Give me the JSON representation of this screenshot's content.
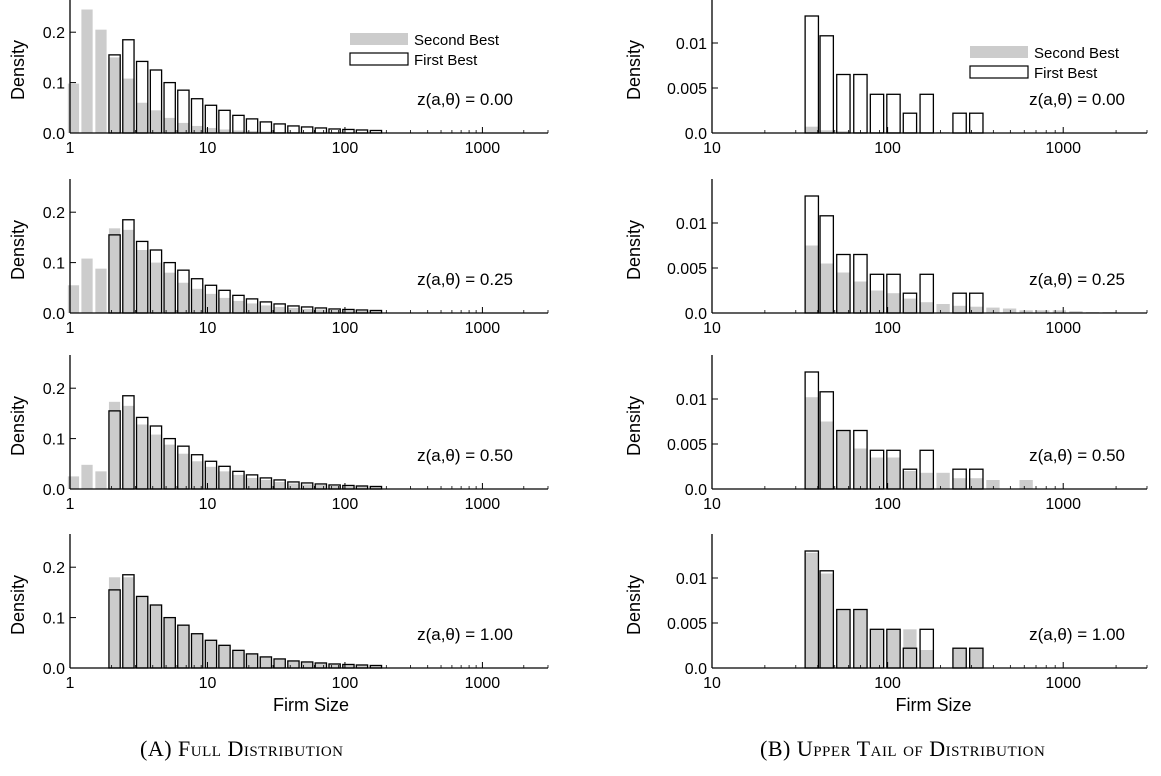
{
  "captions": {
    "left_prefix": "(A) ",
    "left_text": "Full Distribution",
    "right_prefix": "(B) ",
    "right_text": "Upper Tail of Distribution"
  },
  "legend": {
    "second_best": "Second Best",
    "first_best": "First Best"
  },
  "colors": {
    "second_best_fill": "#cccccc",
    "first_best_edge": "#000000",
    "first_best_fill": "#ffffff"
  },
  "chart_data": [
    {
      "type": "bar",
      "panel": "A",
      "row": 1,
      "ylabel": "Density",
      "xlabel": "",
      "xscale": "log",
      "xlim": [
        1,
        3000
      ],
      "ylim": [
        0,
        0.25
      ],
      "xticks": [
        "1",
        "10",
        "100",
        "1000"
      ],
      "yticks": [
        "0.0",
        "0.1",
        "0.2"
      ],
      "annotation": "z(a,θ) = 0.00",
      "legend": "top-right",
      "series": [
        {
          "name": "Second Best",
          "x": [
            1.06,
            1.33,
            1.68,
            2.11,
            2.66,
            3.35,
            4.22,
            5.31,
            6.68,
            8.41,
            10.6,
            13.3,
            16.8,
            21.1,
            26.6,
            33.5,
            42.2,
            53.1,
            66.8,
            84.1,
            106,
            133,
            168
          ],
          "values": [
            0.098,
            0.245,
            0.205,
            0.15,
            0.108,
            0.06,
            0.045,
            0.03,
            0.02,
            0.014,
            0.01,
            0.007,
            0.005,
            0.004,
            0.003,
            0.002,
            0.002,
            0.001,
            0.001,
            0.001,
            0.001,
            0.001,
            0.001
          ]
        },
        {
          "name": "First Best",
          "x": [
            2.11,
            2.66,
            3.35,
            4.22,
            5.31,
            6.68,
            8.41,
            10.6,
            13.3,
            16.8,
            21.1,
            26.6,
            33.5,
            42.2,
            53.1,
            66.8,
            84.1,
            106,
            133,
            168
          ],
          "values": [
            0.155,
            0.185,
            0.142,
            0.125,
            0.1,
            0.085,
            0.068,
            0.055,
            0.045,
            0.035,
            0.028,
            0.022,
            0.018,
            0.014,
            0.012,
            0.01,
            0.008,
            0.007,
            0.006,
            0.005
          ]
        }
      ]
    },
    {
      "type": "bar",
      "panel": "A",
      "row": 2,
      "ylabel": "Density",
      "xlabel": "",
      "xscale": "log",
      "xlim": [
        1,
        3000
      ],
      "ylim": [
        0,
        0.25
      ],
      "xticks": [
        "1",
        "10",
        "100",
        "1000"
      ],
      "yticks": [
        "0.0",
        "0.1",
        "0.2"
      ],
      "annotation": "z(a,θ) = 0.25",
      "series": [
        {
          "name": "Second Best",
          "x": [
            1.06,
            1.33,
            1.68,
            2.11,
            2.66,
            3.35,
            4.22,
            5.31,
            6.68,
            8.41,
            10.6,
            13.3,
            16.8,
            21.1,
            26.6,
            33.5,
            42.2,
            53.1,
            66.8,
            84.1,
            106,
            133,
            168
          ],
          "values": [
            0.055,
            0.108,
            0.088,
            0.168,
            0.165,
            0.125,
            0.1,
            0.08,
            0.06,
            0.048,
            0.038,
            0.03,
            0.024,
            0.019,
            0.015,
            0.012,
            0.01,
            0.008,
            0.007,
            0.006,
            0.005,
            0.004,
            0.004
          ]
        },
        {
          "name": "First Best",
          "x": [
            2.11,
            2.66,
            3.35,
            4.22,
            5.31,
            6.68,
            8.41,
            10.6,
            13.3,
            16.8,
            21.1,
            26.6,
            33.5,
            42.2,
            53.1,
            66.8,
            84.1,
            106,
            133,
            168
          ],
          "values": [
            0.155,
            0.185,
            0.142,
            0.125,
            0.1,
            0.085,
            0.068,
            0.055,
            0.045,
            0.035,
            0.028,
            0.022,
            0.018,
            0.014,
            0.012,
            0.01,
            0.008,
            0.007,
            0.006,
            0.005
          ]
        }
      ]
    },
    {
      "type": "bar",
      "panel": "A",
      "row": 3,
      "ylabel": "Density",
      "xlabel": "",
      "xscale": "log",
      "xlim": [
        1,
        3000
      ],
      "ylim": [
        0,
        0.25
      ],
      "xticks": [
        "1",
        "10",
        "100",
        "1000"
      ],
      "yticks": [
        "0.0",
        "0.1",
        "0.2"
      ],
      "annotation": "z(a,θ) = 0.50",
      "series": [
        {
          "name": "Second Best",
          "x": [
            1.06,
            1.33,
            1.68,
            2.11,
            2.66,
            3.35,
            4.22,
            5.31,
            6.68,
            8.41,
            10.6,
            13.3,
            16.8,
            21.1,
            26.6,
            33.5,
            42.2,
            53.1,
            66.8,
            84.1,
            106,
            133,
            168
          ],
          "values": [
            0.025,
            0.048,
            0.035,
            0.173,
            0.165,
            0.128,
            0.108,
            0.088,
            0.07,
            0.055,
            0.044,
            0.035,
            0.028,
            0.022,
            0.018,
            0.014,
            0.011,
            0.009,
            0.008,
            0.006,
            0.005,
            0.005,
            0.004
          ]
        },
        {
          "name": "First Best",
          "x": [
            2.11,
            2.66,
            3.35,
            4.22,
            5.31,
            6.68,
            8.41,
            10.6,
            13.3,
            16.8,
            21.1,
            26.6,
            33.5,
            42.2,
            53.1,
            66.8,
            84.1,
            106,
            133,
            168
          ],
          "values": [
            0.155,
            0.185,
            0.142,
            0.125,
            0.1,
            0.085,
            0.068,
            0.055,
            0.045,
            0.035,
            0.028,
            0.022,
            0.018,
            0.014,
            0.012,
            0.01,
            0.008,
            0.007,
            0.006,
            0.005
          ]
        }
      ]
    },
    {
      "type": "bar",
      "panel": "A",
      "row": 4,
      "ylabel": "Density",
      "xlabel": "Firm Size",
      "xscale": "log",
      "xlim": [
        1,
        3000
      ],
      "ylim": [
        0,
        0.25
      ],
      "xticks": [
        "1",
        "10",
        "100",
        "1000"
      ],
      "yticks": [
        "0.0",
        "0.1",
        "0.2"
      ],
      "annotation": "z(a,θ) = 1.00",
      "series": [
        {
          "name": "Second Best",
          "x": [
            2.11,
            2.66,
            3.35,
            4.22,
            5.31,
            6.68,
            8.41,
            10.6,
            13.3,
            16.8,
            21.1,
            26.6,
            33.5,
            42.2,
            53.1,
            66.8,
            84.1,
            106,
            133,
            168
          ],
          "values": [
            0.18,
            0.18,
            0.142,
            0.125,
            0.1,
            0.085,
            0.068,
            0.055,
            0.045,
            0.035,
            0.028,
            0.022,
            0.018,
            0.014,
            0.012,
            0.01,
            0.008,
            0.007,
            0.006,
            0.005
          ]
        },
        {
          "name": "First Best",
          "x": [
            2.11,
            2.66,
            3.35,
            4.22,
            5.31,
            6.68,
            8.41,
            10.6,
            13.3,
            16.8,
            21.1,
            26.6,
            33.5,
            42.2,
            53.1,
            66.8,
            84.1,
            106,
            133,
            168
          ],
          "values": [
            0.155,
            0.185,
            0.142,
            0.125,
            0.1,
            0.085,
            0.068,
            0.055,
            0.045,
            0.035,
            0.028,
            0.022,
            0.018,
            0.014,
            0.012,
            0.01,
            0.008,
            0.007,
            0.006,
            0.005
          ]
        }
      ]
    },
    {
      "type": "bar",
      "panel": "B",
      "row": 1,
      "ylabel": "Density",
      "xlabel": "",
      "xscale": "log",
      "xlim": [
        10,
        3000
      ],
      "ylim": [
        0,
        0.014
      ],
      "xticks": [
        "10",
        "100",
        "1000"
      ],
      "yticks": [
        "0.0",
        "0.005",
        "0.01"
      ],
      "annotation": "z(a,θ) = 0.00",
      "legend": "top-right",
      "series": [
        {
          "name": "Second Best",
          "x": [
            37,
            45,
            56,
            70,
            87,
            108,
            134,
            167,
            207,
            257,
            320,
            398,
            495,
            615,
            765,
            951,
            1182,
            1470,
            1828
          ],
          "values": [
            0.0007,
            0.0003,
            0.0002,
            0.0001,
            0.0001,
            0.0001,
            0.0001,
            0.0001,
            0.0001,
            0,
            0,
            0,
            0,
            0,
            0,
            0,
            0,
            0,
            0
          ]
        },
        {
          "name": "First Best",
          "x": [
            37,
            45,
            56,
            70,
            87,
            108,
            134,
            167,
            207,
            257,
            320,
            398,
            495,
            615,
            765,
            951,
            1182,
            1470,
            1828
          ],
          "values": [
            0.013,
            0.0108,
            0.0065,
            0.0065,
            0.0043,
            0.0043,
            0.0022,
            0.0043,
            0,
            0.0022,
            0.0022,
            0,
            0,
            0,
            0,
            0,
            0,
            0,
            0
          ]
        }
      ]
    },
    {
      "type": "bar",
      "panel": "B",
      "row": 2,
      "ylabel": "Density",
      "xlabel": "",
      "xscale": "log",
      "xlim": [
        10,
        3000
      ],
      "ylim": [
        0,
        0.014
      ],
      "xticks": [
        "10",
        "100",
        "1000"
      ],
      "yticks": [
        "0.0",
        "0.005",
        "0.01"
      ],
      "annotation": "z(a,θ) = 0.25",
      "series": [
        {
          "name": "Second Best",
          "x": [
            37,
            45,
            56,
            70,
            87,
            108,
            134,
            167,
            207,
            257,
            320,
            398,
            495,
            615,
            765,
            951,
            1182,
            1470,
            1828
          ],
          "values": [
            0.0075,
            0.0055,
            0.0045,
            0.0035,
            0.0025,
            0.0022,
            0.0016,
            0.0012,
            0.001,
            0.0008,
            0.0007,
            0.0006,
            0.0005,
            0.0003,
            0.0003,
            0.0003,
            0.0002,
            0.0001,
            0.0001
          ]
        },
        {
          "name": "First Best",
          "x": [
            37,
            45,
            56,
            70,
            87,
            108,
            134,
            167,
            207,
            257,
            320,
            398,
            495,
            615,
            765,
            951,
            1182,
            1470,
            1828
          ],
          "values": [
            0.013,
            0.0108,
            0.0065,
            0.0065,
            0.0043,
            0.0043,
            0.0022,
            0.0043,
            0,
            0.0022,
            0.0022,
            0,
            0,
            0,
            0,
            0,
            0,
            0,
            0
          ]
        }
      ]
    },
    {
      "type": "bar",
      "panel": "B",
      "row": 3,
      "ylabel": "Density",
      "xlabel": "",
      "xscale": "log",
      "xlim": [
        10,
        3000
      ],
      "ylim": [
        0,
        0.014
      ],
      "xticks": [
        "10",
        "100",
        "1000"
      ],
      "yticks": [
        "0.0",
        "0.005",
        "0.01"
      ],
      "annotation": "z(a,θ) = 0.50",
      "series": [
        {
          "name": "Second Best",
          "x": [
            37,
            45,
            56,
            70,
            87,
            108,
            134,
            167,
            207,
            257,
            320,
            398,
            495,
            615,
            765,
            951,
            1182,
            1470,
            1828
          ],
          "values": [
            0.0102,
            0.0075,
            0.0065,
            0.0045,
            0.0035,
            0.0035,
            0.002,
            0.0018,
            0.0018,
            0.0012,
            0.0012,
            0.001,
            0,
            0.001,
            0,
            0,
            0,
            0,
            0
          ]
        },
        {
          "name": "First Best",
          "x": [
            37,
            45,
            56,
            70,
            87,
            108,
            134,
            167,
            207,
            257,
            320,
            398,
            495,
            615,
            765,
            951,
            1182,
            1470,
            1828
          ],
          "values": [
            0.013,
            0.0108,
            0.0065,
            0.0065,
            0.0043,
            0.0043,
            0.0022,
            0.0043,
            0,
            0.0022,
            0.0022,
            0,
            0,
            0,
            0,
            0,
            0,
            0,
            0
          ]
        }
      ]
    },
    {
      "type": "bar",
      "panel": "B",
      "row": 4,
      "ylabel": "Density",
      "xlabel": "Firm Size",
      "xscale": "log",
      "xlim": [
        10,
        3000
      ],
      "ylim": [
        0,
        0.014
      ],
      "xticks": [
        "10",
        "100",
        "1000"
      ],
      "yticks": [
        "0.0",
        "0.005",
        "0.01"
      ],
      "annotation": "z(a,θ) = 1.00",
      "series": [
        {
          "name": "Second Best",
          "x": [
            37,
            45,
            56,
            70,
            87,
            108,
            134,
            167,
            207,
            257,
            320,
            398,
            495,
            615,
            765,
            951,
            1182,
            1470,
            1828
          ],
          "values": [
            0.0128,
            0.0105,
            0.0065,
            0.0065,
            0.0043,
            0.0043,
            0.0043,
            0.002,
            0,
            0.0022,
            0.0022,
            0,
            0,
            0,
            0,
            0,
            0,
            0,
            0
          ]
        },
        {
          "name": "First Best",
          "x": [
            37,
            45,
            56,
            70,
            87,
            108,
            134,
            167,
            207,
            257,
            320,
            398,
            495,
            615,
            765,
            951,
            1182,
            1470,
            1828
          ],
          "values": [
            0.013,
            0.0108,
            0.0065,
            0.0065,
            0.0043,
            0.0043,
            0.0022,
            0.0043,
            0,
            0.0022,
            0.0022,
            0,
            0,
            0,
            0,
            0,
            0,
            0,
            0
          ]
        }
      ]
    }
  ]
}
